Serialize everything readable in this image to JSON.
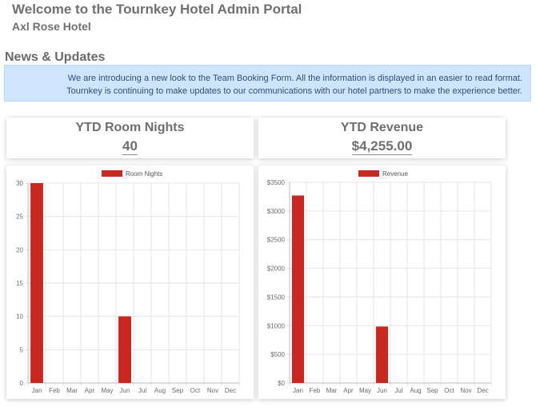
{
  "header": {
    "welcome_prefix": "Welcome to the Tournkey",
    "welcome_bold": "Hotel Admin Portal",
    "hotel_name": "Axl Rose Hotel"
  },
  "news": {
    "heading": "News & Updates",
    "line1": "We are introducing a new look to the Team Booking Form. All the information is displayed in an easier to read format.",
    "line2": "Tournkey is continuing to make updates to our communications with our hotel partners to make the experience better."
  },
  "stats": {
    "room_nights_title": "YTD Room Nights",
    "room_nights_value": "40",
    "revenue_title": "YTD Revenue",
    "revenue_value": "$4,255.00"
  },
  "colors": {
    "bar": "#c8281f",
    "grid": "#e6e6e6"
  },
  "chart_data": [
    {
      "type": "bar",
      "categories": [
        "Jan",
        "Feb",
        "Mar",
        "Apr",
        "May",
        "Jun",
        "Jul",
        "Aug",
        "Sep",
        "Oct",
        "Nov",
        "Dec"
      ],
      "series": [
        {
          "name": "Room Nights",
          "values": [
            30,
            0,
            0,
            0,
            0,
            10,
            0,
            0,
            0,
            0,
            0,
            0
          ]
        }
      ],
      "ylim": [
        0,
        30
      ],
      "yticks": [
        0,
        5,
        10,
        15,
        20,
        25,
        30
      ],
      "ytick_labels": [
        "0",
        "5",
        "10",
        "15",
        "20",
        "25",
        "30"
      ],
      "grid": true,
      "legend": "top-center"
    },
    {
      "type": "bar",
      "categories": [
        "Jan",
        "Feb",
        "Mar",
        "Apr",
        "May",
        "Jun",
        "Jul",
        "Aug",
        "Sep",
        "Oct",
        "Nov",
        "Dec"
      ],
      "series": [
        {
          "name": "Revenue",
          "values": [
            3270,
            0,
            0,
            0,
            0,
            985,
            0,
            0,
            0,
            0,
            0,
            0
          ]
        }
      ],
      "ylim": [
        0,
        3500
      ],
      "yticks": [
        0,
        500,
        1000,
        1500,
        2000,
        2500,
        3000,
        3500
      ],
      "ytick_labels": [
        "$0",
        "$500",
        "$1000",
        "$1500",
        "$2000",
        "$2500",
        "$3000",
        "$3500"
      ],
      "grid": true,
      "legend": "top-center"
    }
  ]
}
